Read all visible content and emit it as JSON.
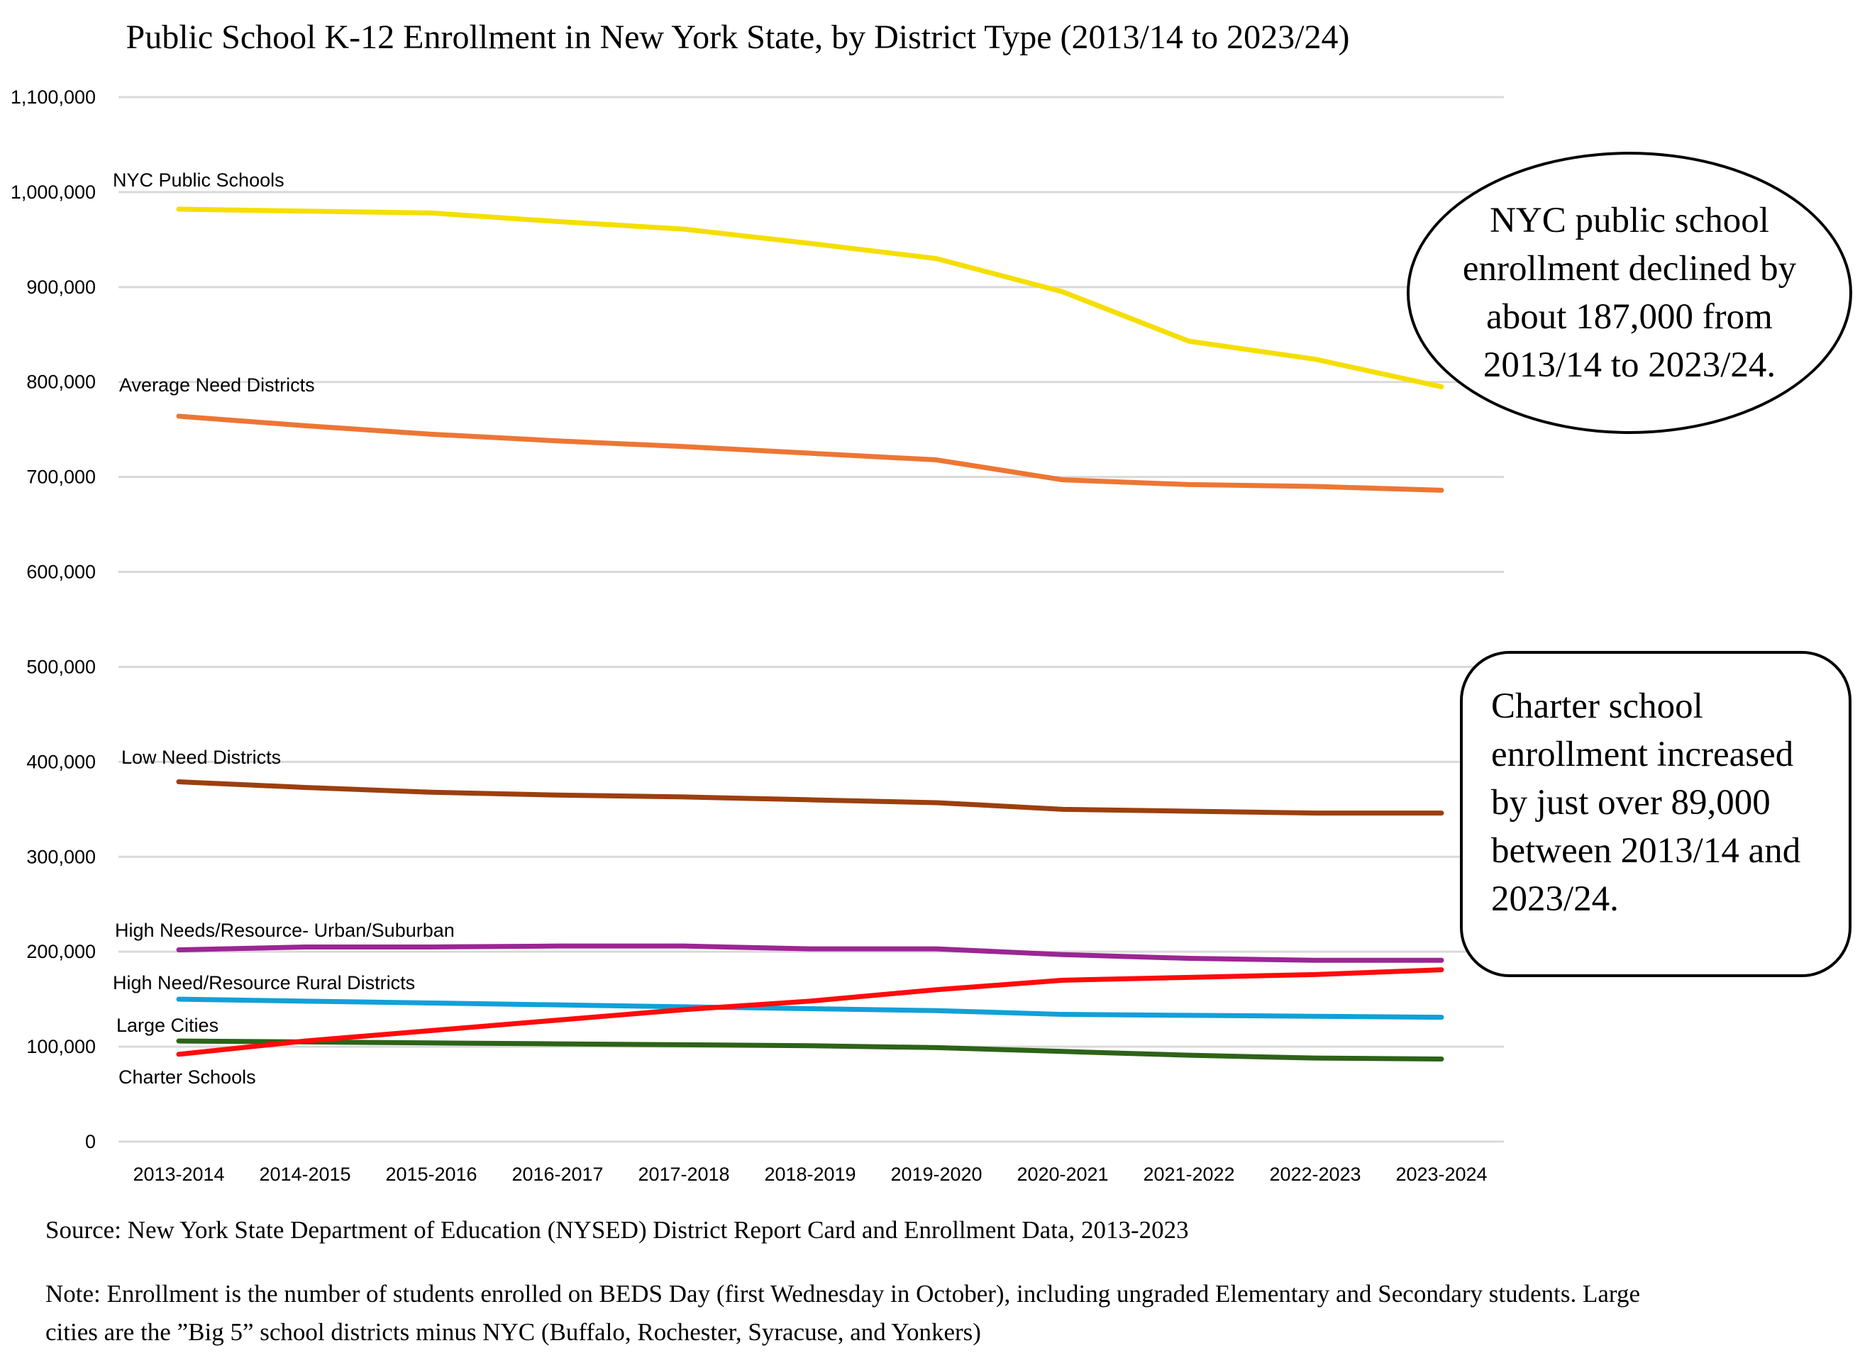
{
  "chart_data": {
    "type": "line",
    "title": "Public School K-12 Enrollment in New York State, by District Type (2013/14 to 2023/24)",
    "xlabel": "",
    "ylabel": "",
    "ylim": [
      0,
      1100000
    ],
    "yticks": [
      0,
      100000,
      200000,
      300000,
      400000,
      500000,
      600000,
      700000,
      800000,
      900000,
      1000000,
      1100000
    ],
    "ytick_labels": [
      "0",
      "100,000",
      "200,000",
      "300,000",
      "400,000",
      "500,000",
      "600,000",
      "700,000",
      "800,000",
      "900,000",
      "1,000,000",
      "1,100,000"
    ],
    "grid": true,
    "legend": "inline labels at left",
    "categories": [
      "2013-2014",
      "2014-2015",
      "2015-2016",
      "2016-2017",
      "2017-2018",
      "2018-2019",
      "2019-2020",
      "2020-2021",
      "2021-2022",
      "2022-2023",
      "2023-2024"
    ],
    "series": [
      {
        "name": "NYC Public Schools",
        "color": "#f5de00",
        "values": [
          982000,
          980000,
          978000,
          969000,
          961000,
          946000,
          930000,
          895000,
          843000,
          824000,
          795000
        ]
      },
      {
        "name": "Average Need Districts",
        "color": "#ed7634",
        "values": [
          764000,
          754000,
          745000,
          738000,
          732000,
          725000,
          718000,
          697000,
          692000,
          690000,
          686000
        ]
      },
      {
        "name": "Low Need Districts",
        "color": "#9c3f0f",
        "values": [
          379000,
          373000,
          368000,
          365000,
          363000,
          360000,
          357000,
          350000,
          348000,
          346000,
          346000
        ]
      },
      {
        "name": "High Needs/Resource- Urban/Suburban",
        "color": "#9b2693",
        "values": [
          202000,
          205000,
          205000,
          206000,
          206000,
          203000,
          203000,
          197000,
          193000,
          191000,
          191000
        ]
      },
      {
        "name": "High Need/Resource Rural Districts",
        "color": "#12a0d8",
        "values": [
          150000,
          148000,
          146000,
          144000,
          142000,
          140000,
          138000,
          134000,
          133000,
          132000,
          131000
        ]
      },
      {
        "name": "Large Cities",
        "color": "#2d6318",
        "values": [
          106000,
          105000,
          104000,
          103000,
          102000,
          101000,
          99000,
          95000,
          91000,
          88000,
          87000
        ]
      },
      {
        "name": "Charter Schools",
        "color": "#ff0b0b",
        "values": [
          92000,
          106000,
          117000,
          128000,
          139000,
          148000,
          160000,
          170000,
          173000,
          176000,
          181000
        ]
      }
    ],
    "annotations": [
      "NYC public school enrollment declined by about 187,000 from 2013/14 to 2023/24.",
      "Charter school enrollment increased by just over 89,000 between 2013/14 and 2023/24."
    ]
  },
  "notes": {
    "source": "Source: New York State Department of Education (NYSED) District Report Card and Enrollment Data, 2013-2023",
    "note": "Note: Enrollment is the number of students enrolled on BEDS Day (first Wednesday in October), including ungraded Elementary and Secondary students. Large cities are the ”Big 5” school districts minus NYC (Buffalo, Rochester, Syracuse, and Yonkers)"
  }
}
